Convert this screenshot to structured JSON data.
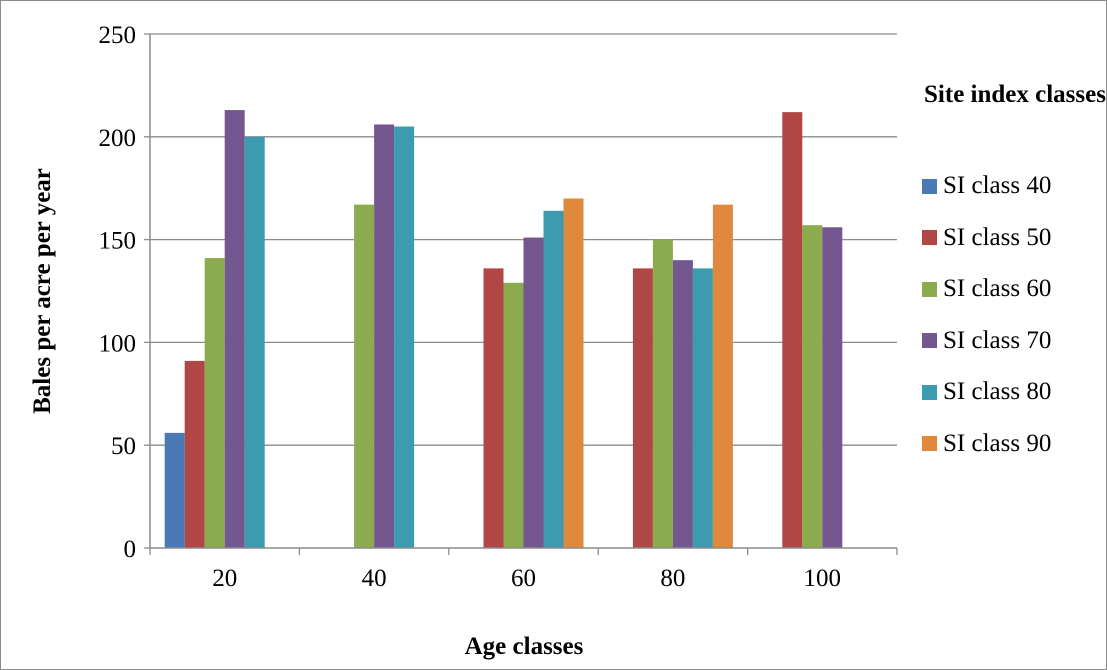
{
  "chart_data": {
    "type": "bar",
    "title": "",
    "xlabel": "Age classes",
    "ylabel": "Bales per acre per year",
    "ylim": [
      0,
      250
    ],
    "yticks": [
      0,
      50,
      100,
      150,
      200,
      250
    ],
    "categories": [
      "20",
      "40",
      "60",
      "80",
      "100"
    ],
    "grid": true,
    "legend": {
      "title": "Site index classes",
      "placement": "right"
    },
    "series": [
      {
        "name": "SI class 40",
        "color": "#4a7ab5",
        "values": [
          56,
          null,
          null,
          null,
          null
        ]
      },
      {
        "name": "SI class 50",
        "color": "#b04744",
        "values": [
          91,
          null,
          136,
          136,
          212
        ]
      },
      {
        "name": "SI class 60",
        "color": "#8caa4e",
        "values": [
          141,
          167,
          129,
          150,
          157
        ]
      },
      {
        "name": "SI class 70",
        "color": "#74578f",
        "values": [
          213,
          206,
          151,
          140,
          156
        ]
      },
      {
        "name": "SI class 80",
        "color": "#3d9bb0",
        "values": [
          200,
          205,
          164,
          136,
          null
        ]
      },
      {
        "name": "SI class 90",
        "color": "#e0893d",
        "values": [
          null,
          null,
          170,
          167,
          null
        ]
      }
    ]
  }
}
